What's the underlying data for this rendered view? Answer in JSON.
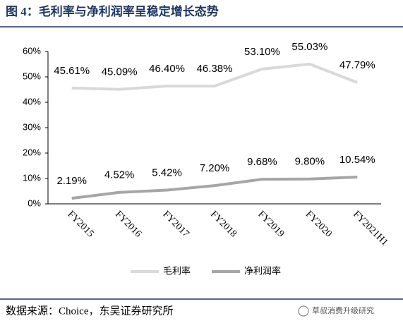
{
  "chart_data": {
    "type": "line",
    "title": "图 4：毛利率与净利润率呈稳定增长态势",
    "categories": [
      "FY2015",
      "FY2016",
      "FY2017",
      "FY2018",
      "FY2019",
      "FY2020",
      "FY2021H1"
    ],
    "series": [
      {
        "name": "毛利率",
        "color": "#d9d9d9",
        "values": [
          45.61,
          45.09,
          46.4,
          46.38,
          53.1,
          55.03,
          47.79
        ],
        "value_labels": [
          "45.61%",
          "45.09%",
          "46.40%",
          "46.38%",
          "53.10%",
          "55.03%",
          "47.79%"
        ]
      },
      {
        "name": "净利润率",
        "color": "#a6a6a6",
        "values": [
          2.19,
          4.52,
          5.42,
          7.2,
          9.68,
          9.8,
          10.54
        ],
        "value_labels": [
          "2.19%",
          "4.52%",
          "5.42%",
          "7.20%",
          "9.68%",
          "9.80%",
          "10.54%"
        ]
      }
    ],
    "ylim": [
      0,
      60
    ],
    "yticks": [
      {
        "value": 0,
        "label": "0%"
      },
      {
        "value": 10,
        "label": "10%"
      },
      {
        "value": 20,
        "label": "20%"
      },
      {
        "value": 30,
        "label": "30%"
      },
      {
        "value": 40,
        "label": "40%"
      },
      {
        "value": 50,
        "label": "50%"
      },
      {
        "value": 60,
        "label": "60%"
      }
    ],
    "grid": false,
    "legend": "bottom"
  },
  "source": "数据来源：Choice，东吴证券研究所",
  "watermark": "草叔消费升级研究"
}
